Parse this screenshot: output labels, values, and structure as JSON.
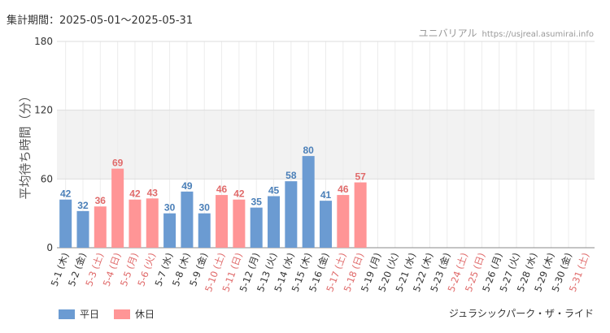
{
  "header": {
    "period": "集計期間：2025-05-01〜2025-05-31",
    "site_name": "ユニバリアル",
    "site_domain": "https://usjreal.asumirai.info"
  },
  "footer": {
    "attraction": "ジュラシックパーク・ザ・ライド"
  },
  "legend": [
    {
      "label": "平日",
      "color": "#6b9bd2"
    },
    {
      "label": "休日",
      "color": "#ff9596"
    }
  ],
  "colors": {
    "weekday_bar": "#6b9bd2",
    "holiday_bar": "#ff9596",
    "weekday_label": "#4a7fb8",
    "holiday_label": "#e06a6a",
    "band": "#f2f2f2"
  },
  "chart_data": {
    "type": "bar",
    "ylabel": "平均待ち時間（分）",
    "ylim": [
      0,
      180
    ],
    "yticks": [
      0,
      60,
      120,
      180
    ],
    "grid": true,
    "legend_position": "bottom-left",
    "categories": [
      "5-1 (木)",
      "5-2 (金)",
      "5-3 (土)",
      "5-4 (日)",
      "5-5 (月)",
      "5-6 (火)",
      "5-7 (水)",
      "5-8 (木)",
      "5-9 (金)",
      "5-10 (土)",
      "5-11 (日)",
      "5-12 (月)",
      "5-13 (火)",
      "5-14 (水)",
      "5-15 (木)",
      "5-16 (金)",
      "5-17 (土)",
      "5-18 (日)",
      "5-19 (月)",
      "5-20 (火)",
      "5-21 (水)",
      "5-22 (木)",
      "5-23 (金)",
      "5-24 (土)",
      "5-25 (日)",
      "5-26 (月)",
      "5-27 (火)",
      "5-28 (水)",
      "5-29 (木)",
      "5-30 (金)",
      "5-31 (土)"
    ],
    "values": [
      42,
      32,
      36,
      69,
      42,
      43,
      30,
      49,
      30,
      46,
      42,
      35,
      45,
      58,
      80,
      41,
      46,
      57,
      null,
      null,
      null,
      null,
      null,
      null,
      null,
      null,
      null,
      null,
      null,
      null,
      null
    ],
    "holiday": [
      false,
      false,
      true,
      true,
      true,
      true,
      false,
      false,
      false,
      true,
      true,
      false,
      false,
      false,
      false,
      false,
      true,
      true,
      false,
      false,
      false,
      false,
      false,
      true,
      true,
      false,
      false,
      false,
      false,
      false,
      true
    ],
    "series": [
      {
        "name": "平日"
      },
      {
        "name": "休日"
      }
    ]
  }
}
